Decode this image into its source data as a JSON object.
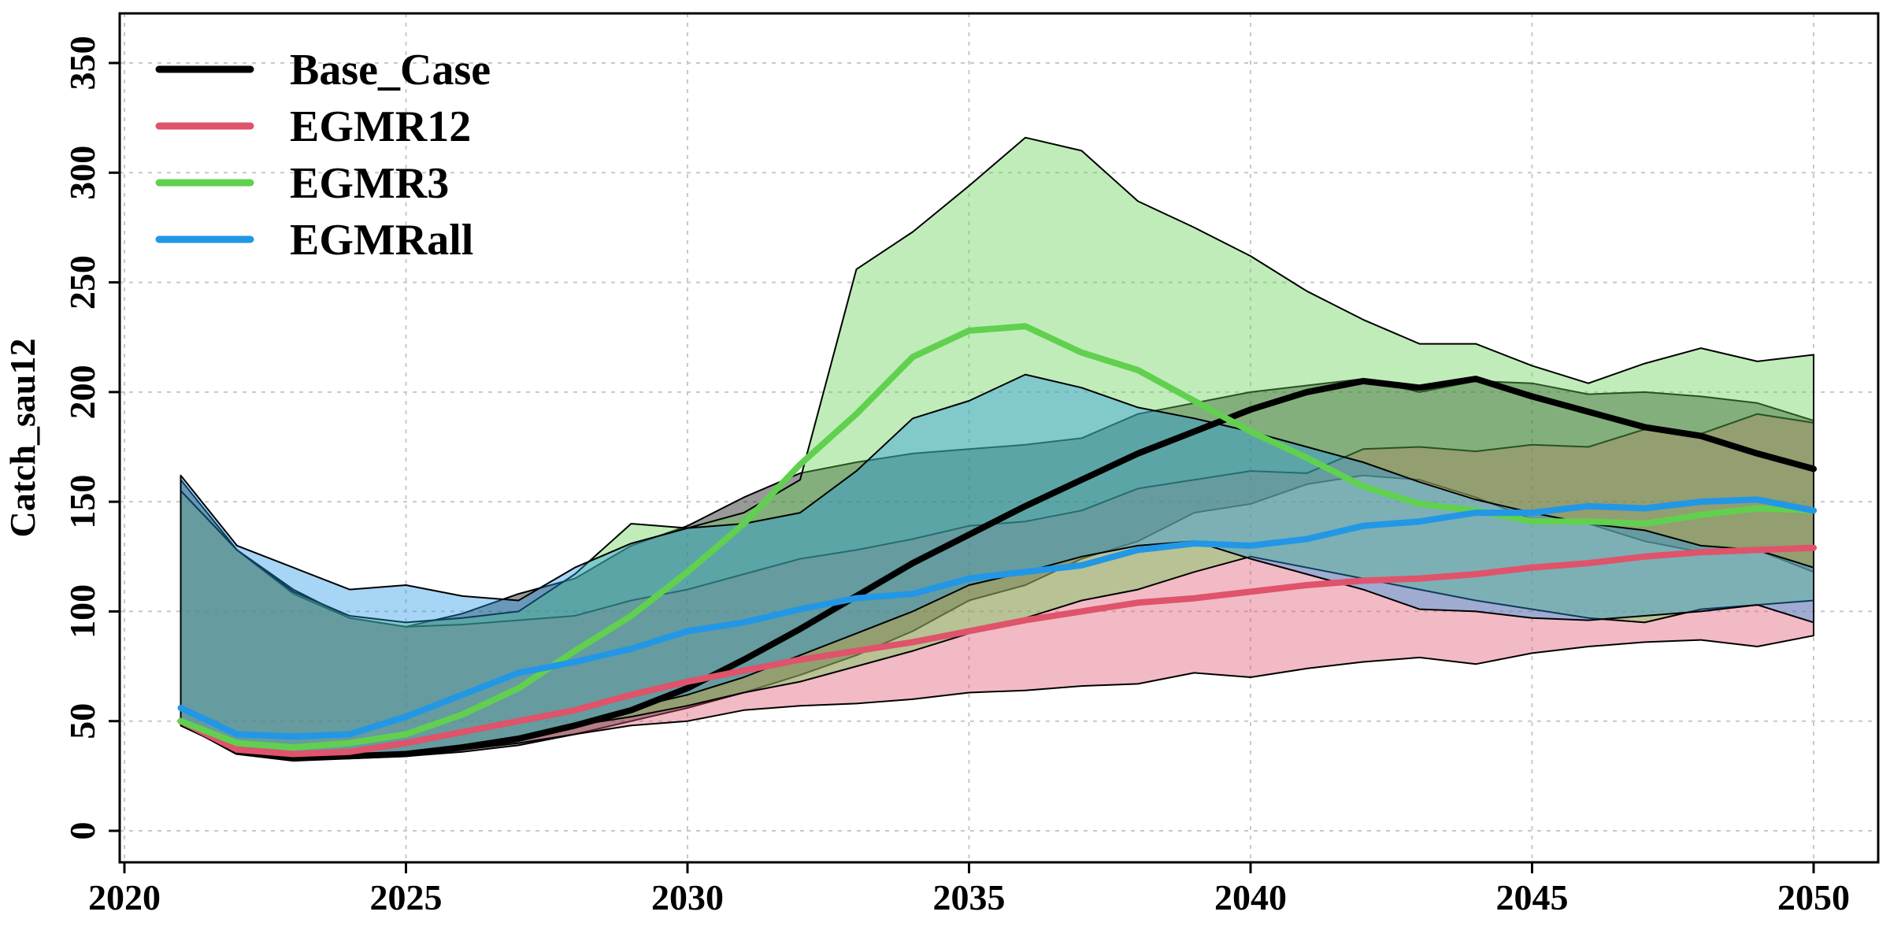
{
  "chart_data": {
    "type": "area",
    "ylabel": "Catch_sau12",
    "xlabel": "",
    "xlim": [
      2020,
      2050
    ],
    "ylim": [
      0,
      350
    ],
    "grid": true,
    "legend_position": "top-left",
    "x_ticks": [
      2020,
      2025,
      2030,
      2035,
      2040,
      2045,
      2050
    ],
    "y_ticks": [
      0,
      50,
      100,
      150,
      200,
      250,
      300,
      350
    ],
    "x": [
      2021,
      2022,
      2023,
      2024,
      2025,
      2026,
      2027,
      2028,
      2029,
      2030,
      2031,
      2032,
      2033,
      2034,
      2035,
      2036,
      2037,
      2038,
      2039,
      2040,
      2041,
      2042,
      2043,
      2044,
      2045,
      2046,
      2047,
      2048,
      2049,
      2050
    ],
    "series": [
      {
        "name": "Base_Case",
        "color": "#000000",
        "median": [
          50,
          36,
          33,
          34,
          35,
          38,
          42,
          48,
          55,
          65,
          78,
          92,
          107,
          122,
          135,
          148,
          160,
          172,
          182,
          192,
          200,
          205,
          202,
          206,
          198,
          191,
          184,
          180,
          172,
          165
        ],
        "lower": [
          48,
          36,
          33,
          33,
          34,
          36,
          39,
          44,
          50,
          56,
          63,
          71,
          80,
          91,
          105,
          112,
          124,
          132,
          145,
          149,
          158,
          162,
          160,
          152,
          142,
          140,
          132,
          127,
          128,
          118
        ],
        "upper": [
          160,
          128,
          110,
          97,
          93,
          99,
          108,
          115,
          130,
          139,
          152,
          163,
          168,
          172,
          174,
          176,
          179,
          190,
          195,
          200,
          203,
          206,
          200,
          205,
          204,
          199,
          200,
          198,
          195,
          187
        ]
      },
      {
        "name": "EGMR12",
        "color": "#DF536B",
        "median": [
          50,
          37,
          35,
          36,
          40,
          45,
          50,
          55,
          62,
          68,
          73,
          78,
          82,
          86,
          91,
          96,
          100,
          104,
          106,
          109,
          112,
          114,
          115,
          117,
          120,
          122,
          125,
          127,
          128,
          129
        ],
        "lower": [
          48,
          36,
          33,
          33,
          35,
          37,
          40,
          44,
          48,
          50,
          55,
          57,
          58,
          60,
          63,
          64,
          66,
          67,
          72,
          70,
          74,
          77,
          79,
          76,
          81,
          84,
          86,
          87,
          84,
          89
        ],
        "upper": [
          155,
          128,
          108,
          97,
          93,
          94,
          96,
          98,
          105,
          110,
          117,
          124,
          128,
          133,
          139,
          141,
          146,
          156,
          160,
          164,
          163,
          174,
          175,
          173,
          176,
          175,
          183,
          181,
          190,
          186
        ]
      },
      {
        "name": "EGMR3",
        "color": "#61D04F",
        "median": [
          50,
          40,
          38,
          40,
          44,
          53,
          65,
          82,
          98,
          118,
          140,
          167,
          190,
          216,
          228,
          230,
          218,
          210,
          196,
          182,
          170,
          157,
          149,
          146,
          141,
          141,
          140,
          144,
          147,
          146
        ],
        "lower": [
          48,
          36,
          34,
          34,
          35,
          38,
          43,
          48,
          52,
          57,
          63,
          68,
          75,
          82,
          90,
          97,
          105,
          110,
          118,
          125,
          120,
          115,
          110,
          105,
          101,
          97,
          95,
          101,
          103,
          105
        ],
        "upper": [
          155,
          128,
          109,
          98,
          95,
          97,
          100,
          117,
          140,
          138,
          145,
          160,
          256,
          273,
          294,
          316,
          310,
          287,
          275,
          262,
          246,
          233,
          222,
          222,
          212,
          204,
          213,
          220,
          214,
          217
        ]
      },
      {
        "name": "EGMRall",
        "color": "#2297E6",
        "median": [
          56,
          44,
          43,
          44,
          52,
          62,
          72,
          77,
          83,
          91,
          95,
          101,
          106,
          108,
          115,
          118,
          121,
          128,
          131,
          130,
          133,
          139,
          141,
          145,
          145,
          148,
          147,
          150,
          151,
          146
        ],
        "lower": [
          48,
          36,
          34,
          34,
          36,
          39,
          43,
          48,
          56,
          62,
          70,
          80,
          90,
          100,
          112,
          118,
          125,
          130,
          132,
          124,
          117,
          110,
          101,
          100,
          97,
          96,
          98,
          100,
          103,
          95
        ],
        "upper": [
          162,
          130,
          120,
          110,
          112,
          107,
          105,
          120,
          131,
          138,
          140,
          145,
          164,
          188,
          196,
          208,
          202,
          193,
          188,
          182,
          175,
          168,
          159,
          151,
          145,
          140,
          137,
          130,
          128,
          120
        ]
      }
    ]
  }
}
